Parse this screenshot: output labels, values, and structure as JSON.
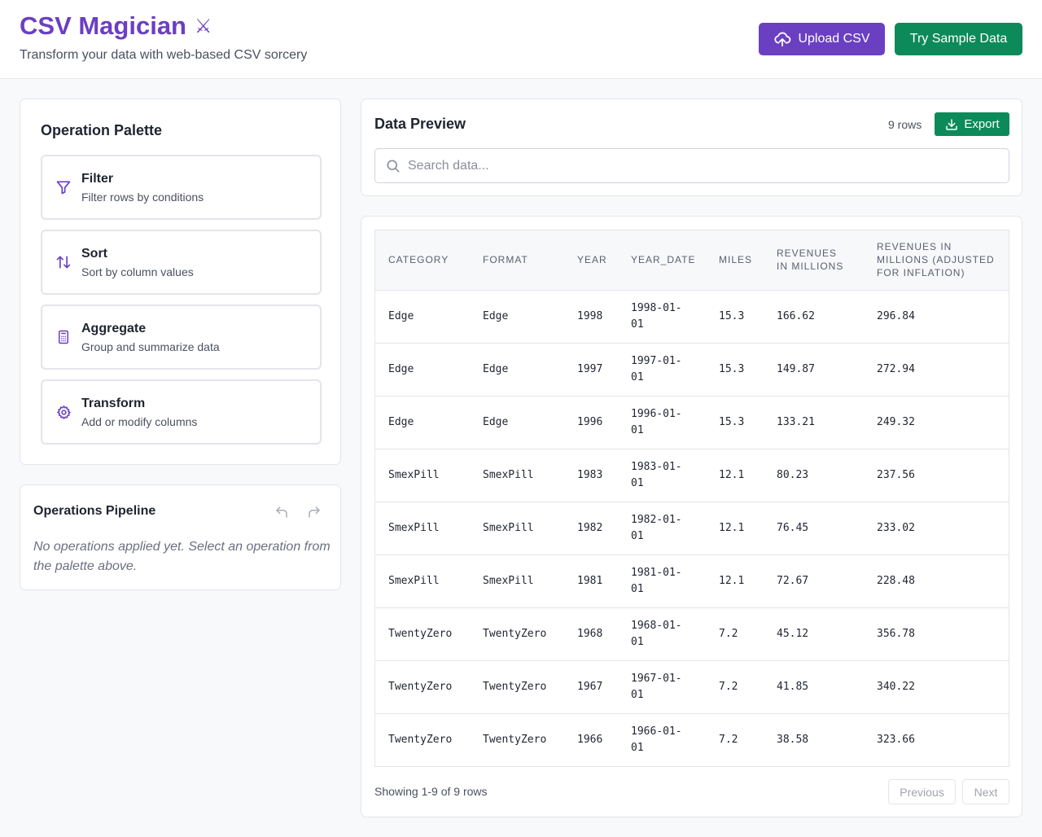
{
  "header": {
    "title": "CSV Magician",
    "title_emoji": "⚔",
    "subtitle": "Transform your data with web-based CSV sorcery",
    "upload_label": "Upload CSV",
    "sample_label": "Try Sample Data"
  },
  "palette": {
    "title": "Operation Palette",
    "items": [
      {
        "label": "Filter",
        "desc": "Filter rows by conditions",
        "icon": "funnel-icon"
      },
      {
        "label": "Sort",
        "desc": "Sort by column values",
        "icon": "sort-arrows-icon"
      },
      {
        "label": "Aggregate",
        "desc": "Group and summarize data",
        "icon": "calculator-icon"
      },
      {
        "label": "Transform",
        "desc": "Add or modify columns",
        "icon": "gear-icon"
      }
    ]
  },
  "pipeline": {
    "title": "Operations Pipeline",
    "empty_text": "No operations applied yet. Select an operation from the palette above."
  },
  "preview": {
    "title": "Data Preview",
    "row_count": "9 rows",
    "export_label": "Export",
    "search_placeholder": "Search data..."
  },
  "table": {
    "columns": [
      "Category",
      "Format",
      "Year",
      "Year_Date",
      "Miles",
      "Revenues in Millions",
      "Revenues in Millions (Adjusted for Inflation)"
    ],
    "rows": [
      [
        "Edge",
        "Edge",
        "1998",
        "1998-01-01",
        "15.3",
        "166.62",
        "296.84"
      ],
      [
        "Edge",
        "Edge",
        "1997",
        "1997-01-01",
        "15.3",
        "149.87",
        "272.94"
      ],
      [
        "Edge",
        "Edge",
        "1996",
        "1996-01-01",
        "15.3",
        "133.21",
        "249.32"
      ],
      [
        "SmexPill",
        "SmexPill",
        "1983",
        "1983-01-01",
        "12.1",
        "80.23",
        "237.56"
      ],
      [
        "SmexPill",
        "SmexPill",
        "1982",
        "1982-01-01",
        "12.1",
        "76.45",
        "233.02"
      ],
      [
        "SmexPill",
        "SmexPill",
        "1981",
        "1981-01-01",
        "12.1",
        "72.67",
        "228.48"
      ],
      [
        "TwentyZero",
        "TwentyZero",
        "1968",
        "1968-01-01",
        "7.2",
        "45.12",
        "356.78"
      ],
      [
        "TwentyZero",
        "TwentyZero",
        "1967",
        "1967-01-01",
        "7.2",
        "41.85",
        "340.22"
      ],
      [
        "TwentyZero",
        "TwentyZero",
        "1966",
        "1966-01-01",
        "7.2",
        "38.58",
        "323.66"
      ]
    ]
  },
  "pagination": {
    "info": "Showing 1-9 of 9 rows",
    "prev_label": "Previous",
    "next_label": "Next"
  },
  "colors": {
    "primary": "#6b3fc2",
    "success": "#0c8a5a",
    "border": "#e3e5ea"
  }
}
